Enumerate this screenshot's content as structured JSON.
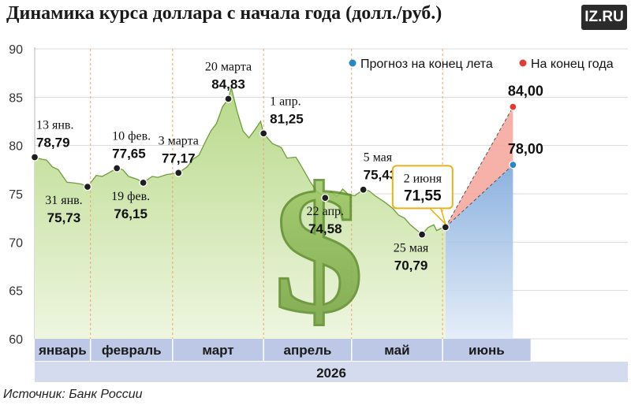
{
  "title": "Динамика курса доллара с начала года (долл./руб.)",
  "logo": "IZ.RU",
  "source": "Источник: Банк России",
  "colors": {
    "area": "#c9e3a3",
    "area_line": "#6f9e3a",
    "forecast_summer": "#2e86c1",
    "forecast_year": "#e03b3b",
    "month_band": "#bcc8e6",
    "year_band": "#d4dbee",
    "dollar_sign": "#7fb24a"
  },
  "chart_data": {
    "type": "area",
    "title": "Динамика курса доллара с начала года (долл./руб.)",
    "ylabel": "",
    "xlabel": "",
    "ylim": [
      60,
      90
    ],
    "yticks": [
      60,
      65,
      70,
      75,
      80,
      85,
      90
    ],
    "year": "2026",
    "months": [
      "январь",
      "февраль",
      "март",
      "апрель",
      "май",
      "июнь"
    ],
    "legend": [
      "Прогноз на конец лета",
      "На конец года"
    ],
    "series": [
      {
        "values": [
          [
            "2026-01-13",
            78.79
          ],
          [
            "2026-01-15",
            78.6
          ],
          [
            "2026-01-17",
            78.5
          ],
          [
            "2026-01-19",
            77.8
          ],
          [
            "2026-01-21",
            77.5
          ],
          [
            "2026-01-24",
            76.2
          ],
          [
            "2026-01-27",
            76.1
          ],
          [
            "2026-01-29",
            76.0
          ],
          [
            "2026-01-31",
            75.73
          ],
          [
            "2026-02-03",
            76.9
          ],
          [
            "2026-02-05",
            76.8
          ],
          [
            "2026-02-08",
            77.3
          ],
          [
            "2026-02-10",
            77.65
          ],
          [
            "2026-02-12",
            77.5
          ],
          [
            "2026-02-14",
            76.8
          ],
          [
            "2026-02-17",
            76.5
          ],
          [
            "2026-02-19",
            76.15
          ],
          [
            "2026-02-22",
            76.8
          ],
          [
            "2026-02-24",
            76.7
          ],
          [
            "2026-02-27",
            77.0
          ],
          [
            "2026-03-03",
            77.17
          ],
          [
            "2026-03-06",
            77.8
          ],
          [
            "2026-03-08",
            78.6
          ],
          [
            "2026-03-10",
            79.0
          ],
          [
            "2026-03-12",
            80.3
          ],
          [
            "2026-03-14",
            81.5
          ],
          [
            "2026-03-16",
            82.3
          ],
          [
            "2026-03-18",
            84.0
          ],
          [
            "2026-03-20",
            84.83
          ],
          [
            "2026-03-21",
            86.0
          ],
          [
            "2026-03-23",
            83.5
          ],
          [
            "2026-03-25",
            81.5
          ],
          [
            "2026-03-27",
            80.8
          ],
          [
            "2026-03-29",
            81.6
          ],
          [
            "2026-03-31",
            82.5
          ],
          [
            "2026-04-01",
            81.25
          ],
          [
            "2026-04-04",
            80.2
          ],
          [
            "2026-04-07",
            79.8
          ],
          [
            "2026-04-09",
            78.7
          ],
          [
            "2026-04-12",
            78.8
          ],
          [
            "2026-04-14",
            77.8
          ],
          [
            "2026-04-17",
            76.2
          ],
          [
            "2026-04-19",
            75.3
          ],
          [
            "2026-04-22",
            74.58
          ],
          [
            "2026-04-24",
            75.2
          ],
          [
            "2026-04-26",
            74.7
          ],
          [
            "2026-04-28",
            75.5
          ],
          [
            "2026-04-30",
            74.9
          ],
          [
            "2026-05-02",
            74.8
          ],
          [
            "2026-05-05",
            75.43
          ],
          [
            "2026-05-07",
            75.3
          ],
          [
            "2026-05-09",
            74.8
          ],
          [
            "2026-05-12",
            74.2
          ],
          [
            "2026-05-15",
            73.5
          ],
          [
            "2026-05-17",
            72.8
          ],
          [
            "2026-05-19",
            72.5
          ],
          [
            "2026-05-21",
            71.8
          ],
          [
            "2026-05-23",
            71.3
          ],
          [
            "2026-05-25",
            70.79
          ],
          [
            "2026-05-27",
            71.5
          ],
          [
            "2026-05-29",
            71.8
          ],
          [
            "2026-05-30",
            71.2
          ],
          [
            "2026-06-01",
            71.5
          ],
          [
            "2026-06-02",
            71.55
          ]
        ]
      },
      {
        "values": [
          [
            "2026-06-02",
            71.55
          ],
          [
            "2026-06-25",
            78.0
          ]
        ]
      },
      {
        "values": [
          [
            "2026-06-02",
            71.55
          ],
          [
            "2026-06-25",
            84.0
          ]
        ]
      }
    ],
    "annotations": [
      {
        "date": "2026-01-13",
        "label": "13 янв.",
        "value": "78,79"
      },
      {
        "date": "2026-01-31",
        "label": "31 янв.",
        "value": "75,73"
      },
      {
        "date": "2026-02-10",
        "label": "10 фев.",
        "value": "77,65"
      },
      {
        "date": "2026-02-19",
        "label": "19 фев.",
        "value": "76,15"
      },
      {
        "date": "2026-03-03",
        "label": "3 марта",
        "value": "77,17"
      },
      {
        "date": "2026-03-20",
        "label": "20 марта",
        "value": "84,83"
      },
      {
        "date": "2026-04-01",
        "label": "1 апр.",
        "value": "81,25"
      },
      {
        "date": "2026-04-22",
        "label": "22 апр.",
        "value": "74,58"
      },
      {
        "date": "2026-05-05",
        "label": "5 мая",
        "value": "75,43"
      },
      {
        "date": "2026-05-25",
        "label": "25 мая",
        "value": "70,79"
      },
      {
        "date": "2026-06-02",
        "label": "2 июня",
        "value": "71,55"
      }
    ],
    "forecast_labels": [
      "78,00",
      "84,00"
    ]
  }
}
